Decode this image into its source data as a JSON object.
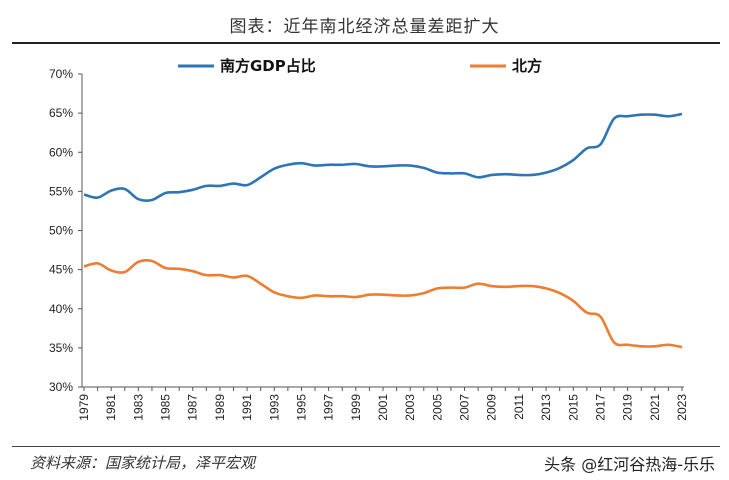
{
  "page": {
    "title": "图表：近年南北经济总量差距扩大",
    "source": "资料来源：国家统计局，泽平宏观",
    "watermark": "头条 @红河谷热海-乐乐"
  },
  "chart_data": {
    "type": "line",
    "title": "图表：近年南北经济总量差距扩大",
    "xlabel": "",
    "ylabel": "",
    "ylim": [
      30,
      70
    ],
    "y_ticks": [
      "30%",
      "35%",
      "40%",
      "45%",
      "50%",
      "55%",
      "60%",
      "65%",
      "70%"
    ],
    "x": [
      1979,
      1980,
      1981,
      1982,
      1983,
      1984,
      1985,
      1986,
      1987,
      1988,
      1989,
      1990,
      1991,
      1992,
      1993,
      1994,
      1995,
      1996,
      1997,
      1998,
      1999,
      2000,
      2001,
      2002,
      2003,
      2004,
      2005,
      2006,
      2007,
      2008,
      2009,
      2010,
      2011,
      2012,
      2013,
      2014,
      2015,
      2016,
      2017,
      2018,
      2019,
      2020,
      2021,
      2022,
      2023
    ],
    "x_tick_labels": [
      "1979",
      "1981",
      "1983",
      "1985",
      "1987",
      "1989",
      "1991",
      "1993",
      "1995",
      "1997",
      "1999",
      "2001",
      "2003",
      "2005",
      "2007",
      "2009",
      "2011",
      "2013",
      "2015",
      "2017",
      "2019",
      "2021",
      "2023"
    ],
    "grid": false,
    "legend_position": "top",
    "series": [
      {
        "name": "南方GDP占比",
        "color": "#2e75b6",
        "values": [
          54.6,
          54.2,
          55.1,
          55.3,
          54.0,
          53.9,
          54.8,
          54.9,
          55.2,
          55.7,
          55.7,
          56.0,
          55.8,
          56.8,
          57.9,
          58.4,
          58.6,
          58.3,
          58.4,
          58.4,
          58.5,
          58.2,
          58.2,
          58.3,
          58.3,
          58.0,
          57.4,
          57.3,
          57.3,
          56.8,
          57.1,
          57.2,
          57.1,
          57.1,
          57.4,
          58.0,
          59.0,
          60.5,
          61.0,
          64.3,
          64.6,
          64.8,
          64.8,
          64.6,
          64.9
        ],
        "visible": true
      },
      {
        "name": "北方",
        "color": "#ed7d31",
        "values": [
          45.4,
          45.8,
          44.9,
          44.7,
          46.0,
          46.1,
          45.2,
          45.1,
          44.8,
          44.3,
          44.3,
          44.0,
          44.2,
          43.2,
          42.1,
          41.6,
          41.4,
          41.7,
          41.6,
          41.6,
          41.5,
          41.8,
          41.8,
          41.7,
          41.7,
          42.0,
          42.6,
          42.7,
          42.7,
          43.2,
          42.9,
          42.8,
          42.9,
          42.9,
          42.6,
          42.0,
          41.0,
          39.5,
          39.0,
          35.7,
          35.4,
          35.2,
          35.2,
          35.4,
          35.1
        ],
        "visible": true
      }
    ]
  }
}
